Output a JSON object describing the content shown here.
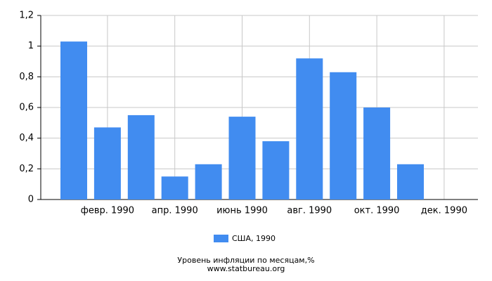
{
  "chart_data": {
    "type": "bar",
    "title": "Уровень инфляции по месяцам,%",
    "source": "www.statbureau.org",
    "categories": [
      null,
      "февр. 1990",
      null,
      "апр. 1990",
      null,
      "июнь 1990",
      null,
      "авг. 1990",
      null,
      "окт. 1990",
      null,
      "дек. 1990"
    ],
    "series": [
      {
        "name": "США, 1990",
        "color": "#418cf0",
        "values": [
          1.03,
          0.47,
          0.55,
          0.15,
          0.23,
          0.54,
          0.38,
          0.92,
          0.83,
          0.6,
          0.23,
          null
        ]
      }
    ],
    "ylim": [
      0,
      1.2
    ],
    "yticks": [
      0,
      {
        "value": 0.2,
        "label": "0,2"
      },
      {
        "value": 0.4,
        "label": "0,4"
      },
      {
        "value": 0.6,
        "label": "0,6"
      },
      {
        "value": 0.8,
        "label": "0,8"
      },
      1,
      {
        "value": 1.2,
        "label": "1,2"
      }
    ],
    "grid": true,
    "legend": "bottom"
  }
}
